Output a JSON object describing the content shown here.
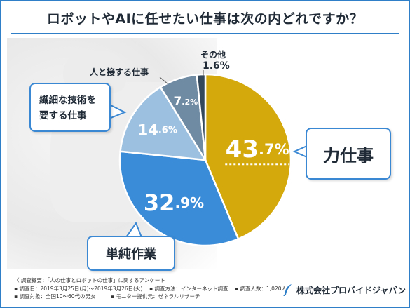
{
  "title": "ロボットやAIに任せたい仕事は次の内どれですか？",
  "colors": {
    "frame": "#2e7ec8",
    "power": "#d4a90c",
    "simple": "#3a8cd8",
    "skill": "#9cc0e0",
    "person": "#6f8aa3",
    "other": "#34485c"
  },
  "chart_data": {
    "type": "pie",
    "title": "ロボットやAIに任せたい仕事は次の内どれですか？",
    "slices": [
      {
        "label": "力仕事",
        "value": 43.7,
        "value_label": "43.7%"
      },
      {
        "label": "単純作業",
        "value": 32.9,
        "value_label": "32.9%"
      },
      {
        "label": "繊細な技術を要する仕事",
        "value": 14.6,
        "value_label": "14.6%"
      },
      {
        "label": "人と接する仕事",
        "value": 7.2,
        "value_label": "7.2%"
      },
      {
        "label": "その他",
        "value": 1.6,
        "value_label": "1.6%"
      }
    ],
    "start": "12 o'clock",
    "direction": "clockwise"
  },
  "labels": {
    "power": "力仕事",
    "simple": "単純作業",
    "skill_line1": "繊細な技術を",
    "skill_line2": "要する仕事",
    "person": "人と接する仕事",
    "other_name": "その他",
    "other_value": "1.6%"
  },
  "notes": {
    "line1": "《 調査概要：「人の仕事とロボットの仕事」に関するアンケート",
    "line2_a": "▪ 調査日：2019年3月25日(月)～2019年3月26日(火)",
    "line2_b": "▪ 調査方法：インターネット調査",
    "line2_c": "▪ 調査人数：1,020人",
    "line3_a": "▪ 調査対象：全国10～60代の男女",
    "line3_b": "▪ モニター提供元：ゼネラルリサーチ"
  },
  "company": "株式会社プロバイドジャパン"
}
